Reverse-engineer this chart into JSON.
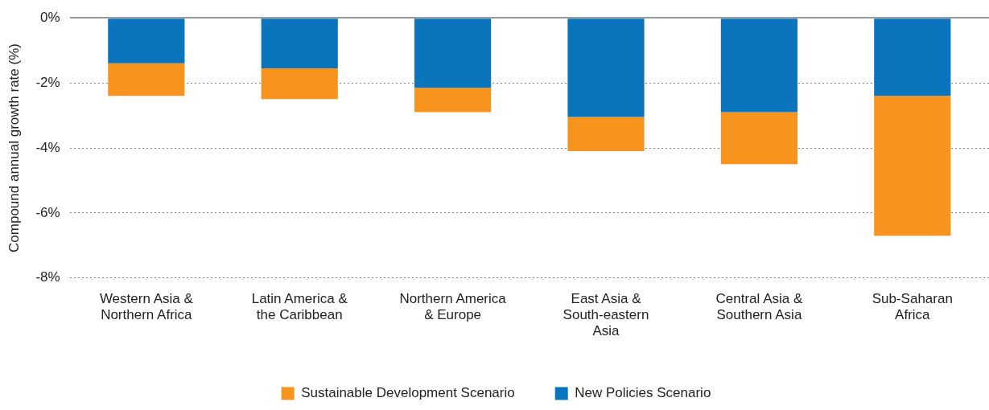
{
  "chart_data": {
    "type": "bar",
    "stacked": true,
    "ylabel": "Compound annual growth rate (%)",
    "categories": [
      "Western Asia & Northern Africa",
      "Latin America & the Caribbean",
      "Northern America & Europe",
      "East Asia & South-eastern Asia",
      "Central Asia & Southern Asia",
      "Sub-Saharan Africa"
    ],
    "series": [
      {
        "name": "New Policies Scenario",
        "color": "#0a75bc",
        "values": [
          -1.4,
          -1.55,
          -2.15,
          -3.05,
          -2.9,
          -2.4
        ]
      },
      {
        "name": "Sustainable Development Scenario",
        "color": "#f7941d",
        "values": [
          -1.0,
          -0.95,
          -0.75,
          -1.05,
          -1.6,
          -4.3
        ]
      }
    ],
    "ylim": [
      -8,
      0
    ],
    "yticks": [
      {
        "value": 0,
        "label": "0%"
      },
      {
        "value": -2,
        "label": "-2%"
      },
      {
        "value": -4,
        "label": "-4%"
      },
      {
        "value": -6,
        "label": "-6%"
      },
      {
        "value": -8,
        "label": "-8%"
      }
    ],
    "grid": "y",
    "legend": "bottom"
  }
}
